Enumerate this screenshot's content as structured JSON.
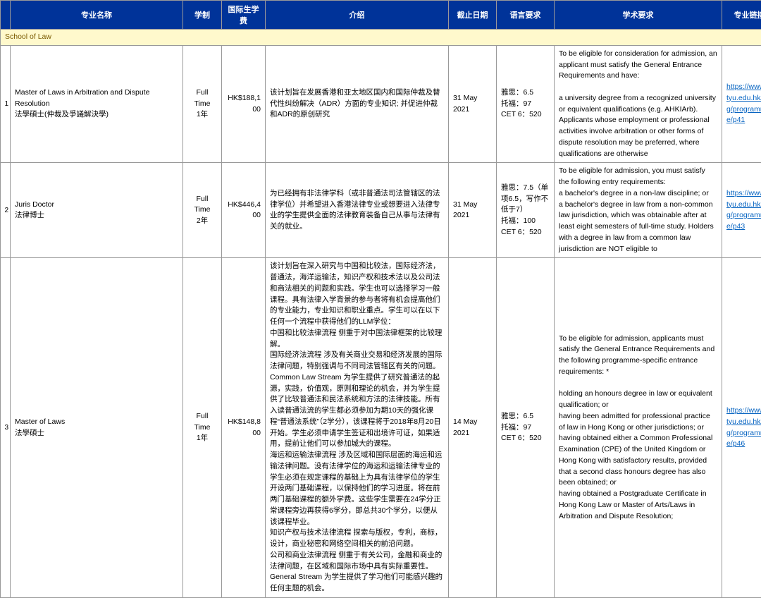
{
  "header": {
    "cols": [
      "专业名称",
      "学制",
      "国际生学费",
      "介绍",
      "截止日期",
      "语言要求",
      "学术要求",
      "专业链接"
    ]
  },
  "section": {
    "title": "School of Law"
  },
  "rows": [
    {
      "idx": "1",
      "name": "Master of Laws in Arbitration and Dispute Resolution\n法學碩士(仲裁及爭議解決學)",
      "mode": "Full Time\n1年",
      "fee": "HK$188,100",
      "intro": "该计划旨在发展香港和亚太地区国内和国际仲裁及替代性纠纷解决（ADR）方面的专业知识; 并促进仲裁和ADR的原创研究",
      "deadline": "31 May 2021",
      "lang": "雅思：6.5\n托福：97\nCET 6：520",
      "acad": "To be eligible for consideration for admission, an applicant must satisfy the General Entrance Requirements and have:\n\na university degree from a recognized university or equivalent qualifications (e.g. AHKIArb).\nApplicants whose employment or professional activities involve arbitration or other forms of dispute resolution may be preferred, where qualifications are otherwise",
      "link": "https://www.cityu.edu.hk/pg/programme/p41"
    },
    {
      "idx": "2",
      "name": "Juris Doctor\n法律博士",
      "mode": "Full Time\n2年",
      "fee": "HK$446,400",
      "intro": "为已经拥有非法律学科（或非普通法司法管辖区的法律学位）并希望进入香港法律专业或想要进入法律专业的学生提供全面的法律教育装备自己从事与法律有关的就业。",
      "deadline": "31 May 2021",
      "lang": "雅思：7.5（单项6.5，写作不低于7）\n托福：100\nCET 6：520",
      "acad": "To be eligible for admission, you must satisfy the following entry requirements:\na bachelor's degree in a non-law discipline; or\na bachelor's degree in law from a non-common law jurisdiction, which was obtainable after at least eight semesters of full-time study.  Holders with a degree in law from a common law jurisdiction are NOT eligible to",
      "link": "https://www.cityu.edu.hk/pg/programme/p43"
    },
    {
      "idx": "3",
      "name": "Master of Laws\n法學碩士",
      "mode": "Full Time\n1年",
      "fee": "HK$148,800",
      "intro": "该计划旨在深入研究与中国和比较法，国际经济法，普通法，海洋运输法，知识产权和技术法以及公司法和商法相关的问题和实践。学生也可以选择学习一般课程。具有法律入学背景的参与者将有机会提高他们的专业能力，专业知识和职业重点。学生可以在以下任何一个流程中获得他们的LLM学位：\n中国和比较法律流程  侧重于对中国法律框架的比较理解。\n国际经济法流程  涉及有关商业交易和经济发展的国际法律问题，特别强调与不同司法管辖区有关的问题。\nCommon Law Stream  为学生提供了研究普通法的起源，实践，价值观，原则和理论的机会，并为学生提供了比较普通法和民法系统和方法的法律技能。所有入读普通法流的学生都必须参加为期10天的强化课程“普通法系统”（2学分），该课程将于2018年8月20日开始。学生必须申请学生签证和出境许可证，如果适用，提前让他们可以参加城大的课程。\n海运和运输法律流程  涉及区域和国际层面的海运和运输法律问题。没有法律学位的海运和运输法律专业的学生必须在规定课程的基础上为具有法律学位的学生开设两门基础课程，以保持他们的学习进度。将在前两门基础课程的额外学费。这些学生需要在24学分正常课程旁边再获得6学分，即总共30个学分，以便从该课程毕业。\n知识产权与技术法律流程  探索与版权，专利，商标，设计，商业秘密和网络空间相关的前沿问题。\n公司和商业法律流程  侧重于有关公司，金融和商业的法律问题，在区域和国际市场中具有实际重要性。\nGeneral Stream  为学生提供了学习他们可能感兴趣的任何主题的机会。",
      "deadline": "14 May 2021",
      "lang": "雅思：6.5\n托福：97\nCET 6：520",
      "acad": "To be eligible for admission, applicants must satisfy the General Entrance Requirements and the following programme-specific entrance requirements: *\n\nholding an honours degree in law or equivalent qualification; or\nhaving been admitted for professional practice of law in Hong Kong or other jurisdictions; or\nhaving obtained either a Common Professional Examination (CPE) of the United Kingdom or Hong Kong with satisfactory results, provided that a second class honours degree has also been obtained; or\nhaving obtained a Postgraduate Certificate in Hong Kong Law or Master of Arts/Laws in Arbitration and Dispute Resolution;",
      "link": "https://www.cityu.edu.hk/pg/programme/p46"
    }
  ],
  "style": {
    "header_bg": "#003399",
    "header_fg": "#ffffff",
    "section_bg": "#fff9cc",
    "section_fg": "#7a5a00",
    "border": "#999999",
    "link_color": "#0563c1",
    "font_size_header": 11,
    "font_size_cell": 10.5
  }
}
